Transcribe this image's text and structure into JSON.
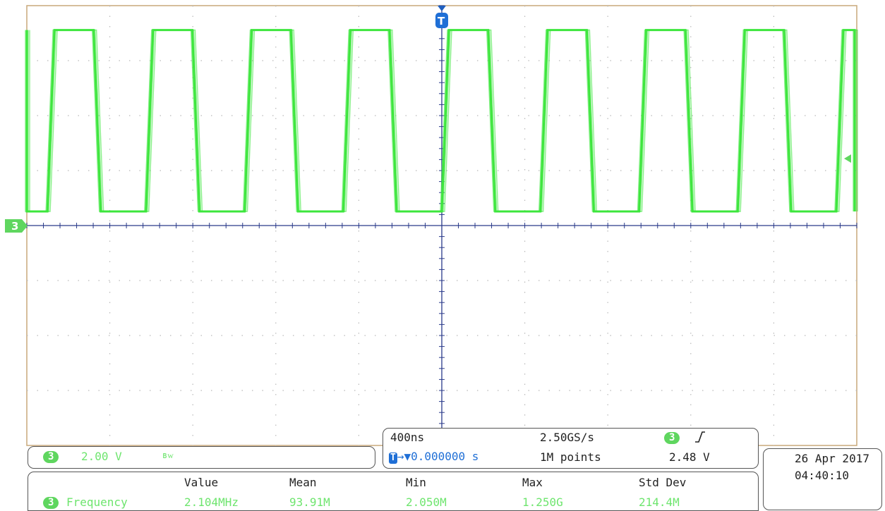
{
  "channel": {
    "number": "3",
    "scale": "2.00 V",
    "bandwidth_symbol": "BW"
  },
  "horizontal": {
    "time_per_div": "400ns",
    "sample_rate": "2.50GS/s",
    "trigger_position": "0.000000 s",
    "record_length": "1M points"
  },
  "trigger": {
    "source": "3",
    "slope_symbol": "rising-edge-icon",
    "level": "2.48 V"
  },
  "datetime": {
    "date": "26 Apr  2017",
    "time": "04:40:10"
  },
  "measurements": {
    "headers": [
      "Value",
      "Mean",
      "Min",
      "Max",
      "Std Dev"
    ],
    "row": {
      "source": "3",
      "name": "Frequency",
      "values": [
        "2.104MHz",
        "93.91M",
        "2.050M",
        "1.250G",
        "214.4M"
      ]
    }
  },
  "colors": {
    "waveform": "#3ee63e",
    "grid": "#c8a87a",
    "axis": "#2a3a8a",
    "badge": "#5fd65f"
  },
  "waveform": {
    "type": "square",
    "frequency_mhz": 2.104,
    "high_level_div": 2.0,
    "low_level_div": 0.0
  }
}
